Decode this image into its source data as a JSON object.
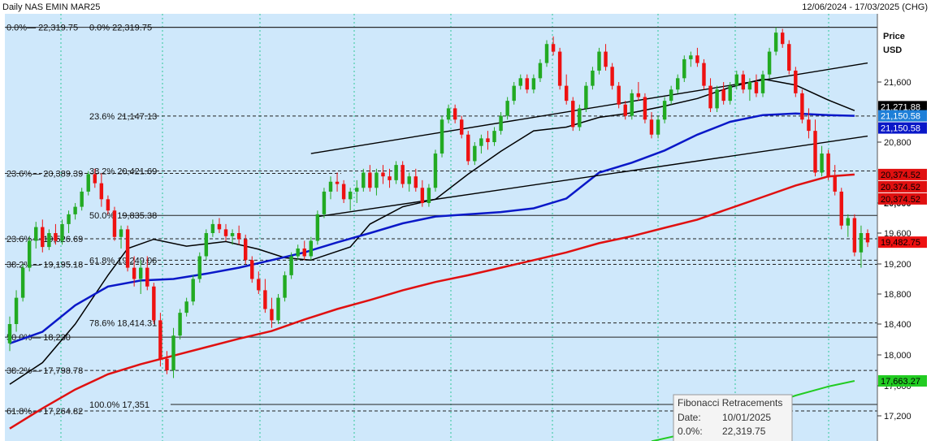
{
  "header": {
    "left": "Daily NAS EMIN MAR25",
    "right": "12/06/2024 - 17/03/2025 (CHG)"
  },
  "axis": {
    "title": "Price",
    "unit": "USD"
  },
  "colors": {
    "background": "#cfe8fb",
    "up": "#22aa22",
    "down": "#ee1111",
    "ma_black": "#000000",
    "ma_blue": "#0a18c8",
    "ma_red": "#e01010",
    "ma_green": "#22cc22",
    "grid": "#2fc89a"
  },
  "tooltip": {
    "title": "Fibonacci Retracements",
    "rows": [
      {
        "label": "Date:",
        "value": "10/01/2025"
      },
      {
        "label": "0.0%:",
        "value": "22,319.75"
      }
    ]
  },
  "chart_data": {
    "type": "candlestick",
    "title": "Daily NAS EMIN MAR25",
    "ylabel": "Price USD",
    "ylim": [
      16980,
      22380
    ],
    "yticks": [
      17200,
      17600,
      18000,
      18400,
      18800,
      19200,
      19600,
      20000,
      20800,
      21600
    ],
    "fib_lines": [
      {
        "label": "0.0%",
        "value": 22319.75,
        "text": "0.0%— 22,319.75",
        "style": "solid"
      },
      {
        "label": "0.0%",
        "value": 22319.75,
        "text": "0.0%     22,319.75",
        "style": "solid"
      },
      {
        "label": "23.6%",
        "value": 21147.13,
        "text": "23.6%     21,147.13",
        "style": "dashed"
      },
      {
        "label": "23.6%",
        "value": 20389.39,
        "text": "23.6%— 20,389.39",
        "style": "dashed"
      },
      {
        "label": "38.2%",
        "value": 20421.69,
        "text": "38.2%     20,421.69",
        "style": "dashed"
      },
      {
        "label": "50.0%",
        "value": 19835.38,
        "text": "50.0%     19,835.38",
        "style": "solid"
      },
      {
        "label": "23.6%",
        "value": 19526.69,
        "text": "23.6%— 19,526.69",
        "style": "dashed"
      },
      {
        "label": "61.8%",
        "value": 19249.06,
        "text": "61.8%     19,249.06",
        "style": "dashed"
      },
      {
        "label": "38.2%",
        "value": 19195.18,
        "text": "38.2%— 19,195.18",
        "style": "dashed"
      },
      {
        "label": "78.6%",
        "value": 18414.31,
        "text": "78.6%     18,414.31",
        "style": "dashed"
      },
      {
        "label": "50.0%",
        "value": 18230,
        "text": "50.0%— 18,230",
        "style": "solid"
      },
      {
        "label": "38.2%",
        "value": 17798.78,
        "text": "38.2%— 17,798.78",
        "style": "dashed"
      },
      {
        "label": "100.0%",
        "value": 17351,
        "text": "100.0% 17,351",
        "style": "solid"
      },
      {
        "label": "61.8%",
        "value": 17264.82,
        "text": "61.8%— 17,264.82",
        "style": "dashed"
      }
    ],
    "price_tags": [
      {
        "value": 21271.88,
        "text": "21,271.88",
        "bg": "#000000",
        "fg": "#ffffff"
      },
      {
        "value": 21150.58,
        "text": "21,150.58",
        "bg": "#1e7fd8",
        "fg": "#ffffff"
      },
      {
        "value": 21150.58,
        "text": "21,150.58",
        "bg": "#0a18c8",
        "fg": "#ffffff",
        "offset": 1
      },
      {
        "value": 20374.52,
        "text": "20,374.52",
        "bg": "#e01010",
        "fg": "#000000"
      },
      {
        "value": 20374.52,
        "text": "20,374.52",
        "bg": "#e01010",
        "fg": "#000000",
        "offset": 1
      },
      {
        "value": 20374.52,
        "text": "20,374.52",
        "bg": "#e01010",
        "fg": "#000000",
        "offset": 2
      },
      {
        "value": 19482.75,
        "text": "19,482.75",
        "bg": "#ee1111",
        "fg": "#000000"
      },
      {
        "value": 17663.27,
        "text": "17,663.27",
        "bg": "#22cc22",
        "fg": "#000000"
      }
    ],
    "trend_lines": [
      {
        "name": "upper-channel",
        "from": [
          46,
          20650
        ],
        "to": [
          131,
          21850
        ]
      },
      {
        "name": "lower-channel",
        "from": [
          47,
          19820
        ],
        "to": [
          131,
          20880
        ]
      }
    ],
    "series": [
      {
        "name": "ma-black",
        "points": [
          [
            0,
            17620
          ],
          [
            5,
            17900
          ],
          [
            10,
            18400
          ],
          [
            15,
            19050
          ],
          [
            18,
            19400
          ],
          [
            22,
            19520
          ],
          [
            27,
            19430
          ],
          [
            33,
            19490
          ],
          [
            38,
            19390
          ],
          [
            42,
            19280
          ],
          [
            46,
            19250
          ],
          [
            52,
            19420
          ],
          [
            55,
            19720
          ],
          [
            60,
            19950
          ],
          [
            65,
            20050
          ],
          [
            70,
            20380
          ],
          [
            75,
            20680
          ],
          [
            80,
            20950
          ],
          [
            85,
            21000
          ],
          [
            90,
            21130
          ],
          [
            95,
            21190
          ],
          [
            100,
            21280
          ],
          [
            105,
            21380
          ],
          [
            110,
            21530
          ],
          [
            115,
            21640
          ],
          [
            120,
            21560
          ],
          [
            125,
            21360
          ],
          [
            129,
            21220
          ]
        ]
      },
      {
        "name": "ma-blue",
        "points": [
          [
            0,
            18150
          ],
          [
            5,
            18300
          ],
          [
            10,
            18650
          ],
          [
            15,
            18900
          ],
          [
            20,
            18980
          ],
          [
            25,
            19000
          ],
          [
            30,
            19070
          ],
          [
            35,
            19150
          ],
          [
            40,
            19250
          ],
          [
            45,
            19350
          ],
          [
            50,
            19480
          ],
          [
            55,
            19600
          ],
          [
            60,
            19730
          ],
          [
            65,
            19820
          ],
          [
            75,
            19880
          ],
          [
            80,
            19930
          ],
          [
            85,
            20060
          ],
          [
            90,
            20400
          ],
          [
            95,
            20530
          ],
          [
            100,
            20690
          ],
          [
            105,
            20900
          ],
          [
            110,
            21070
          ],
          [
            115,
            21160
          ],
          [
            120,
            21180
          ],
          [
            125,
            21160
          ],
          [
            129,
            21150
          ]
        ]
      },
      {
        "name": "ma-red",
        "points": [
          [
            0,
            17050
          ],
          [
            5,
            17300
          ],
          [
            10,
            17550
          ],
          [
            15,
            17750
          ],
          [
            20,
            17880
          ],
          [
            25,
            17990
          ],
          [
            30,
            18100
          ],
          [
            35,
            18210
          ],
          [
            40,
            18310
          ],
          [
            45,
            18460
          ],
          [
            50,
            18600
          ],
          [
            55,
            18720
          ],
          [
            60,
            18850
          ],
          [
            65,
            18960
          ],
          [
            70,
            19050
          ],
          [
            75,
            19150
          ],
          [
            80,
            19250
          ],
          [
            85,
            19350
          ],
          [
            90,
            19470
          ],
          [
            95,
            19560
          ],
          [
            100,
            19670
          ],
          [
            105,
            19780
          ],
          [
            110,
            19930
          ],
          [
            115,
            20080
          ],
          [
            120,
            20230
          ],
          [
            125,
            20350
          ],
          [
            129,
            20374
          ]
        ]
      },
      {
        "name": "ma-green",
        "points": [
          [
            98,
            16900
          ],
          [
            105,
            17020
          ],
          [
            110,
            17160
          ],
          [
            115,
            17320
          ],
          [
            120,
            17470
          ],
          [
            125,
            17590
          ],
          [
            129,
            17663
          ]
        ]
      }
    ],
    "candles": [
      [
        18150,
        18500,
        18050,
        18400
      ],
      [
        18400,
        18850,
        18300,
        18750
      ],
      [
        18750,
        19200,
        18700,
        19150
      ],
      [
        19150,
        19550,
        19100,
        19500
      ],
      [
        19500,
        19750,
        19400,
        19680
      ],
      [
        19680,
        19780,
        19350,
        19420
      ],
      [
        19420,
        19650,
        19380,
        19600
      ],
      [
        19600,
        19720,
        19450,
        19500
      ],
      [
        19500,
        19780,
        19450,
        19720
      ],
      [
        19720,
        19900,
        19600,
        19850
      ],
      [
        19850,
        20000,
        19780,
        19950
      ],
      [
        19950,
        20200,
        19900,
        20150
      ],
      [
        20150,
        20420,
        20100,
        20380
      ],
      [
        20380,
        20450,
        20200,
        20260
      ],
      [
        20260,
        20390,
        19950,
        20050
      ],
      [
        20050,
        20100,
        19850,
        19900
      ],
      [
        19900,
        19950,
        19500,
        19550
      ],
      [
        19550,
        19700,
        19400,
        19650
      ],
      [
        19650,
        19700,
        19100,
        19150
      ],
      [
        19150,
        19300,
        18900,
        19000
      ],
      [
        19000,
        19250,
        18800,
        19150
      ],
      [
        19150,
        19300,
        18850,
        18900
      ],
      [
        18900,
        18950,
        18400,
        18450
      ],
      [
        18450,
        18550,
        17850,
        17950
      ],
      [
        17950,
        18050,
        17750,
        17800
      ],
      [
        17800,
        18350,
        17700,
        18250
      ],
      [
        18250,
        18600,
        18200,
        18550
      ],
      [
        18550,
        18750,
        18500,
        18700
      ],
      [
        18700,
        19050,
        18650,
        19000
      ],
      [
        19000,
        19350,
        18950,
        19300
      ],
      [
        19300,
        19650,
        19250,
        19600
      ],
      [
        19600,
        19780,
        19550,
        19720
      ],
      [
        19720,
        19800,
        19600,
        19650
      ],
      [
        19650,
        19720,
        19500,
        19560
      ],
      [
        19560,
        19650,
        19450,
        19600
      ],
      [
        19600,
        19700,
        19450,
        19520
      ],
      [
        19520,
        19580,
        19200,
        19250
      ],
      [
        19250,
        19300,
        18950,
        19000
      ],
      [
        19000,
        19100,
        18800,
        18850
      ],
      [
        18850,
        19000,
        18550,
        18600
      ],
      [
        18600,
        18750,
        18350,
        18450
      ],
      [
        18450,
        18800,
        18400,
        18750
      ],
      [
        18750,
        19100,
        18700,
        19050
      ],
      [
        19050,
        19350,
        19000,
        19300
      ],
      [
        19300,
        19450,
        19250,
        19400
      ],
      [
        19400,
        19500,
        19250,
        19300
      ],
      [
        19300,
        19550,
        19250,
        19500
      ],
      [
        19500,
        19900,
        19450,
        19850
      ],
      [
        19850,
        20200,
        19800,
        20150
      ],
      [
        20150,
        20350,
        20050,
        20280
      ],
      [
        20280,
        20400,
        20150,
        20250
      ],
      [
        20250,
        20300,
        20000,
        20050
      ],
      [
        20050,
        20200,
        19900,
        20150
      ],
      [
        20150,
        20300,
        20000,
        20200
      ],
      [
        20200,
        20450,
        20150,
        20400
      ],
      [
        20400,
        20500,
        20150,
        20200
      ],
      [
        20200,
        20450,
        20100,
        20400
      ],
      [
        20400,
        20500,
        20250,
        20350
      ],
      [
        20350,
        20450,
        20200,
        20300
      ],
      [
        20300,
        20550,
        20250,
        20500
      ],
      [
        20500,
        20550,
        20200,
        20250
      ],
      [
        20250,
        20400,
        20150,
        20350
      ],
      [
        20350,
        20450,
        20150,
        20200
      ],
      [
        20200,
        20300,
        19950,
        20000
      ],
      [
        20000,
        20250,
        19950,
        20200
      ],
      [
        20200,
        20700,
        20150,
        20650
      ],
      [
        20650,
        21150,
        20600,
        21100
      ],
      [
        21100,
        21300,
        21050,
        21250
      ],
      [
        21250,
        21300,
        21050,
        21100
      ],
      [
        21100,
        21150,
        20850,
        20900
      ],
      [
        20900,
        20950,
        20500,
        20550
      ],
      [
        20550,
        20800,
        20500,
        20750
      ],
      [
        20750,
        20900,
        20650,
        20850
      ],
      [
        20850,
        20950,
        20700,
        20800
      ],
      [
        20800,
        21000,
        20750,
        20950
      ],
      [
        20950,
        21200,
        20900,
        21150
      ],
      [
        21150,
        21400,
        21100,
        21350
      ],
      [
        21350,
        21600,
        21300,
        21550
      ],
      [
        21550,
        21700,
        21500,
        21650
      ],
      [
        21650,
        21700,
        21450,
        21500
      ],
      [
        21500,
        21700,
        21450,
        21650
      ],
      [
        21650,
        21900,
        21600,
        21850
      ],
      [
        21850,
        22150,
        21800,
        22100
      ],
      [
        22100,
        22200,
        21950,
        22000
      ],
      [
        22000,
        22050,
        21500,
        21550
      ],
      [
        21550,
        21700,
        21300,
        21350
      ],
      [
        21350,
        21400,
        20950,
        21000
      ],
      [
        21000,
        21300,
        20950,
        21250
      ],
      [
        21250,
        21600,
        21200,
        21550
      ],
      [
        21550,
        21800,
        21500,
        21750
      ],
      [
        21750,
        22050,
        21700,
        22000
      ],
      [
        22000,
        22100,
        21750,
        21800
      ],
      [
        21800,
        21850,
        21500,
        21550
      ],
      [
        21550,
        21600,
        21250,
        21300
      ],
      [
        21300,
        21350,
        21100,
        21150
      ],
      [
        21150,
        21500,
        21100,
        21450
      ],
      [
        21450,
        21600,
        21350,
        21400
      ],
      [
        21400,
        21450,
        21050,
        21100
      ],
      [
        21100,
        21200,
        20850,
        20900
      ],
      [
        20900,
        21150,
        20850,
        21100
      ],
      [
        21100,
        21400,
        21050,
        21350
      ],
      [
        21350,
        21550,
        21300,
        21500
      ],
      [
        21500,
        21700,
        21450,
        21650
      ],
      [
        21650,
        21950,
        21600,
        21900
      ],
      [
        21900,
        22000,
        21800,
        21950
      ],
      [
        21950,
        22050,
        21800,
        21850
      ],
      [
        21850,
        21900,
        21500,
        21550
      ],
      [
        21550,
        21650,
        21200,
        21250
      ],
      [
        21250,
        21550,
        21200,
        21500
      ],
      [
        21500,
        21600,
        21300,
        21350
      ],
      [
        21350,
        21600,
        21300,
        21550
      ],
      [
        21550,
        21750,
        21500,
        21700
      ],
      [
        21700,
        21750,
        21450,
        21500
      ],
      [
        21500,
        21650,
        21350,
        21600
      ],
      [
        21600,
        21700,
        21400,
        21450
      ],
      [
        21450,
        21750,
        21400,
        21700
      ],
      [
        21700,
        22050,
        21650,
        22000
      ],
      [
        22000,
        22320,
        21950,
        22250
      ],
      [
        22250,
        22300,
        22050,
        22100
      ],
      [
        22100,
        22150,
        21700,
        21750
      ],
      [
        21750,
        21800,
        21400,
        21450
      ],
      [
        21450,
        21500,
        21050,
        21100
      ],
      [
        21100,
        21250,
        20850,
        20950
      ],
      [
        20950,
        21100,
        20350,
        20400
      ],
      [
        20400,
        20750,
        20350,
        20650
      ],
      [
        20650,
        20700,
        20300,
        20350
      ],
      [
        20350,
        20500,
        20100,
        20150
      ],
      [
        20150,
        20200,
        19650,
        19700
      ],
      [
        19700,
        19850,
        19550,
        19800
      ],
      [
        19800,
        19850,
        19300,
        19350
      ],
      [
        19350,
        19700,
        19150,
        19600
      ],
      [
        19600,
        19650,
        19420,
        19480
      ]
    ]
  }
}
